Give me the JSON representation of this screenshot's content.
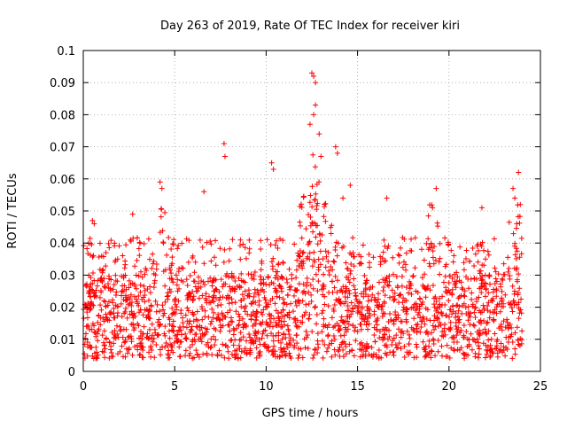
{
  "chart_data": {
    "type": "scatter",
    "title": "Day 263 of 2019, Rate Of TEC Index for receiver kiri",
    "xlabel": "GPS time / hours",
    "ylabel": "ROTI / TECUs",
    "xlim": [
      0,
      25
    ],
    "ylim": [
      0,
      0.1
    ],
    "xticks": [
      0,
      5,
      10,
      15,
      20,
      25
    ],
    "xtick_labels": [
      "0",
      "5",
      "10",
      "15",
      "20",
      "25"
    ],
    "yticks": [
      0,
      0.01,
      0.02,
      0.03,
      0.04,
      0.05,
      0.06,
      0.07,
      0.08,
      0.09,
      0.1
    ],
    "ytick_labels": [
      "0",
      "0.01",
      "0.02",
      "0.03",
      "0.04",
      "0.05",
      "0.06",
      "0.07",
      "0.08",
      "0.09",
      "0.1"
    ],
    "grid": true,
    "marker": "plus",
    "marker_color": "#ff0000",
    "series": [
      {
        "name": "ROTI",
        "x_range_hours": [
          0,
          24
        ],
        "typical_band": [
          0.008,
          0.03
        ],
        "outliers": [
          {
            "x": 0.5,
            "y": 0.047
          },
          {
            "x": 0.6,
            "y": 0.046
          },
          {
            "x": 2.7,
            "y": 0.049
          },
          {
            "x": 4.2,
            "y": 0.059
          },
          {
            "x": 4.3,
            "y": 0.057
          },
          {
            "x": 6.6,
            "y": 0.056
          },
          {
            "x": 7.7,
            "y": 0.071
          },
          {
            "x": 7.75,
            "y": 0.067
          },
          {
            "x": 10.3,
            "y": 0.065
          },
          {
            "x": 10.4,
            "y": 0.063
          },
          {
            "x": 12.5,
            "y": 0.093
          },
          {
            "x": 12.6,
            "y": 0.092
          },
          {
            "x": 12.7,
            "y": 0.09
          },
          {
            "x": 12.7,
            "y": 0.083
          },
          {
            "x": 12.6,
            "y": 0.08
          },
          {
            "x": 12.4,
            "y": 0.077
          },
          {
            "x": 12.9,
            "y": 0.074
          },
          {
            "x": 13.0,
            "y": 0.067
          },
          {
            "x": 13.8,
            "y": 0.07
          },
          {
            "x": 13.9,
            "y": 0.068
          },
          {
            "x": 14.2,
            "y": 0.054
          },
          {
            "x": 14.6,
            "y": 0.058
          },
          {
            "x": 16.6,
            "y": 0.054
          },
          {
            "x": 19.3,
            "y": 0.057
          },
          {
            "x": 19.1,
            "y": 0.051
          },
          {
            "x": 21.8,
            "y": 0.051
          },
          {
            "x": 23.5,
            "y": 0.057
          },
          {
            "x": 23.6,
            "y": 0.054
          },
          {
            "x": 23.8,
            "y": 0.062
          },
          {
            "x": 23.9,
            "y": 0.052
          }
        ]
      }
    ]
  }
}
